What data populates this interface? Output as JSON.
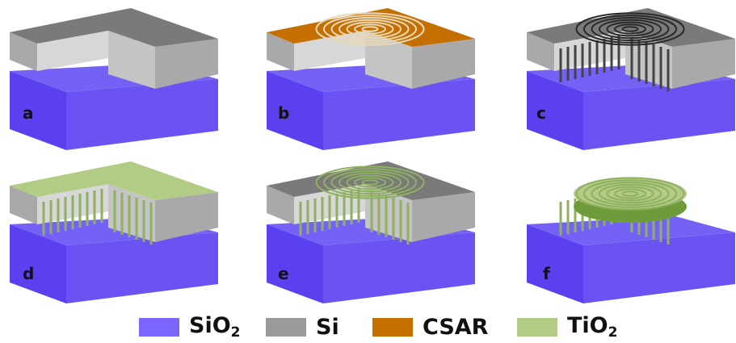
{
  "panels": [
    {
      "label": "a",
      "top": "Si",
      "grooves": false,
      "pillars": false,
      "silicon": true
    },
    {
      "label": "b",
      "top": "CSAR",
      "grooves": true,
      "pillars": false,
      "silicon": true
    },
    {
      "label": "c",
      "top": "Si",
      "grooves": true,
      "pillars": true,
      "silicon": true
    },
    {
      "label": "d",
      "top": "TiO2",
      "grooves": false,
      "pillars": true,
      "silicon": true
    },
    {
      "label": "e",
      "top": "Si",
      "grooves": true,
      "pillars": true,
      "silicon": true,
      "fill": "TiO2"
    },
    {
      "label": "f",
      "top": "TiO2",
      "grooves": true,
      "pillars": true,
      "silicon": false
    }
  ],
  "legend": [
    {
      "name": "SiO",
      "sub": "2",
      "color": "#7a66ff"
    },
    {
      "name": "Si",
      "sub": "",
      "color": "#9a9a9a"
    },
    {
      "name": "CSAR",
      "sub": "",
      "color": "#c46f00"
    },
    {
      "name": "TiO",
      "sub": "2",
      "color": "#b3cc85"
    }
  ],
  "colors": {
    "sio2_top": "#7462f7",
    "sio2_front": "#5b40f0",
    "sio2_side": "#6a52f3",
    "si_top": "#7a7a7a",
    "si_front": "#a9a9a9",
    "si_side": "#8a8a8a",
    "si_inner": "#d7d7d7",
    "csar": "#c46f00",
    "tio2": "#b3cc85",
    "ring_dark": "#2a2a2a",
    "ring_green": "#8fb060"
  }
}
